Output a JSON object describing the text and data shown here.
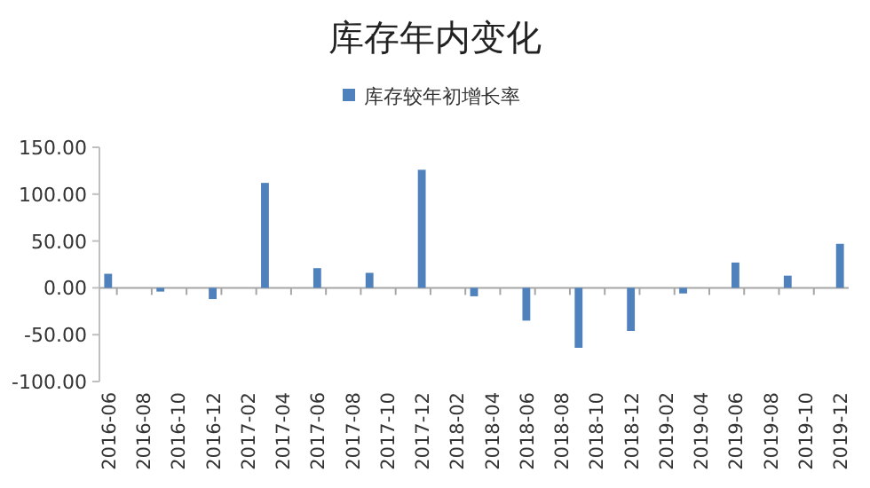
{
  "chart_data": {
    "type": "bar",
    "title": "库存年内变化",
    "legend": "top",
    "categories": [
      "2016-06",
      null,
      "2016-08",
      null,
      "2016-10",
      null,
      "2016-12",
      null,
      "2017-02",
      null,
      "2017-04",
      null,
      "2017-06",
      null,
      "2017-08",
      null,
      "2017-10",
      null,
      "2017-12",
      null,
      "2018-02",
      null,
      "2018-04",
      null,
      "2018-06",
      null,
      "2018-08",
      null,
      "2018-10",
      null,
      "2018-12",
      null,
      "2019-02",
      null,
      "2019-04",
      null,
      "2019-06",
      null,
      "2019-08",
      null,
      "2019-10",
      null,
      "2019-12"
    ],
    "series": [
      {
        "name": "库存较年初增长率",
        "color": "#4f81bd",
        "values": [
          15,
          null,
          null,
          -4,
          null,
          null,
          -12,
          null,
          null,
          112,
          null,
          null,
          21,
          null,
          null,
          16,
          null,
          null,
          126,
          null,
          null,
          -9,
          null,
          null,
          -35,
          null,
          null,
          -64,
          null,
          null,
          -46,
          null,
          null,
          -6,
          null,
          null,
          27,
          null,
          null,
          13,
          null,
          null,
          47
        ]
      }
    ],
    "ylim": [
      -100,
      150
    ],
    "yticks": [
      {
        "value": -100,
        "label": "-100.00"
      },
      {
        "value": -50,
        "label": "-50.00"
      },
      {
        "value": 0,
        "label": "0.00"
      },
      {
        "value": 50,
        "label": "50.00"
      },
      {
        "value": 100,
        "label": "100.00"
      },
      {
        "value": 150,
        "label": "150.00"
      }
    ]
  }
}
